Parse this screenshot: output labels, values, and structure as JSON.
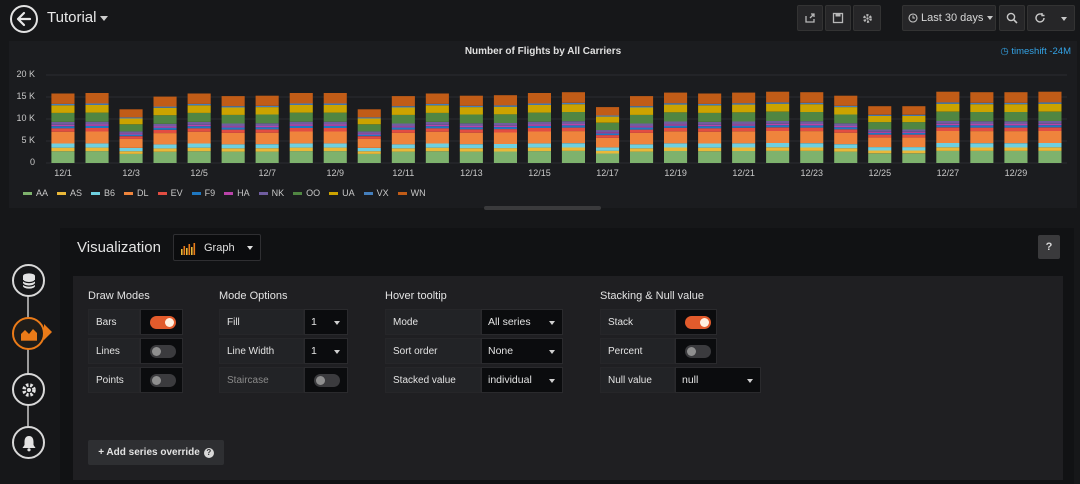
{
  "header": {
    "title": "Tutorial",
    "time_range": "Last 30 days"
  },
  "panel": {
    "title": "Number of Flights by All Carriers",
    "timeshift": "timeshift -24M"
  },
  "chart_data": {
    "type": "bar",
    "title": "Number of Flights by All Carriers",
    "stacked": true,
    "ylim": [
      0,
      20000
    ],
    "y_ticks": [
      "20 K",
      "15 K",
      "10 K",
      "5 K",
      "0"
    ],
    "x_ticks": [
      "12/1",
      "12/3",
      "12/5",
      "12/7",
      "12/9",
      "12/11",
      "12/13",
      "12/15",
      "12/17",
      "12/19",
      "12/21",
      "12/23",
      "12/25",
      "12/27",
      "12/29"
    ],
    "categories": [
      "12/1",
      "12/2",
      "12/3",
      "12/4",
      "12/5",
      "12/6",
      "12/7",
      "12/8",
      "12/9",
      "12/10",
      "12/11",
      "12/12",
      "12/13",
      "12/14",
      "12/15",
      "12/16",
      "12/17",
      "12/18",
      "12/19",
      "12/20",
      "12/21",
      "12/22",
      "12/23",
      "12/24",
      "12/25",
      "12/26",
      "12/27",
      "12/28",
      "12/29",
      "12/30"
    ],
    "totals": [
      15800,
      15900,
      12200,
      15100,
      15800,
      15200,
      15300,
      15900,
      15900,
      12200,
      15200,
      15800,
      15300,
      15400,
      15900,
      16100,
      12700,
      15200,
      16000,
      15800,
      16000,
      16200,
      16100,
      15300,
      12900,
      12900,
      16200,
      16100,
      16100,
      16200
    ],
    "series": [
      {
        "name": "AA",
        "color": "#7eb26d",
        "share": 0.17
      },
      {
        "name": "AS",
        "color": "#eab839",
        "share": 0.05
      },
      {
        "name": "B6",
        "color": "#6ed0e0",
        "share": 0.06
      },
      {
        "name": "DL",
        "color": "#ef843c",
        "share": 0.17
      },
      {
        "name": "EV",
        "color": "#e24d42",
        "share": 0.05
      },
      {
        "name": "F9",
        "color": "#1f78c1",
        "share": 0.03
      },
      {
        "name": "HA",
        "color": "#ba43a9",
        "share": 0.02
      },
      {
        "name": "NK",
        "color": "#705da0",
        "share": 0.04
      },
      {
        "name": "OO",
        "color": "#508642",
        "share": 0.13
      },
      {
        "name": "UA",
        "color": "#cca300",
        "share": 0.11
      },
      {
        "name": "VX",
        "color": "#447ebc",
        "share": 0.02
      },
      {
        "name": "WN",
        "color": "#c15c17",
        "share": 0.15
      }
    ],
    "legend": "bottom"
  },
  "editor": {
    "title": "Visualization",
    "picker_value": "Graph",
    "help": "?",
    "draw_modes": {
      "heading": "Draw Modes",
      "bars": "Bars",
      "bars_on": true,
      "lines": "Lines",
      "lines_on": false,
      "points": "Points",
      "points_on": false
    },
    "mode_options": {
      "heading": "Mode Options",
      "fill": "Fill",
      "fill_value": "1",
      "line_width": "Line Width",
      "line_width_value": "1",
      "staircase": "Staircase",
      "staircase_on": false
    },
    "hover_tooltip": {
      "heading": "Hover tooltip",
      "mode": "Mode",
      "mode_value": "All series",
      "sort_order": "Sort order",
      "sort_order_value": "None",
      "stacked_value": "Stacked value",
      "stacked_value_value": "individual"
    },
    "stacking": {
      "heading": "Stacking & Null value",
      "stack": "Stack",
      "stack_on": true,
      "percent": "Percent",
      "percent_on": false,
      "null_value": "Null value",
      "null_value_value": "null"
    },
    "add_override": "+ Add series override"
  }
}
